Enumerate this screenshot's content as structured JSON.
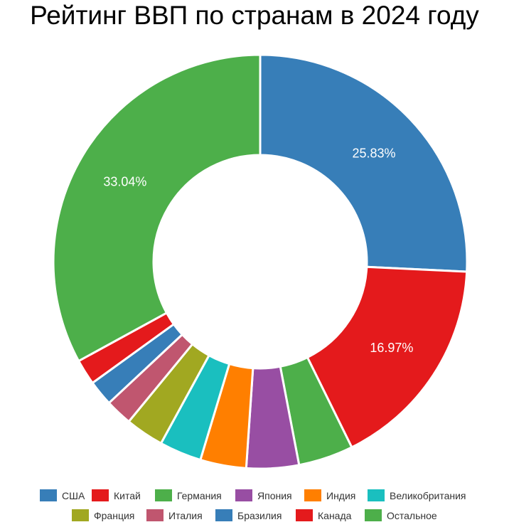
{
  "chart_data": {
    "type": "pie",
    "variant": "donut",
    "title": "Рейтинг ВВП по странам в 2024 году",
    "start": "12 o'clock, clockwise",
    "slices": [
      {
        "label": "США",
        "value": 25.83,
        "color": "#377EB8",
        "display": "25.83%"
      },
      {
        "label": "Китай",
        "value": 16.97,
        "color": "#E41A1C",
        "display": "16.97%"
      },
      {
        "label": "Германия",
        "value": 4.3,
        "color": "#4DAF4A",
        "display": ""
      },
      {
        "label": "Япония",
        "value": 4.1,
        "color": "#984EA3",
        "display": ""
      },
      {
        "label": "Индия",
        "value": 3.6,
        "color": "#FF7F00",
        "display": ""
      },
      {
        "label": "Великобритания",
        "value": 3.3,
        "color": "#1ABFBF",
        "display": ""
      },
      {
        "label": "Франция",
        "value": 3.0,
        "color": "#A1A821",
        "display": ""
      },
      {
        "label": "Италия",
        "value": 2.1,
        "color": "#C0566F",
        "display": ""
      },
      {
        "label": "Бразилия",
        "value": 2.0,
        "color": "#377EB8",
        "display": ""
      },
      {
        "label": "Канада",
        "value": 2.0,
        "color": "#E41A1C",
        "display": ""
      },
      {
        "label": "Остальное",
        "value": 33.04,
        "color": "#4DAF4A",
        "display": "33.04%"
      }
    ],
    "legend": {
      "placement": "bottom",
      "rows": [
        [
          "США",
          "Китай",
          "Германия",
          "Япония",
          "Индия",
          "Великобритания"
        ],
        [
          "Франция",
          "Италия",
          "Бразилия",
          "Канада",
          "Остальное"
        ]
      ]
    }
  }
}
